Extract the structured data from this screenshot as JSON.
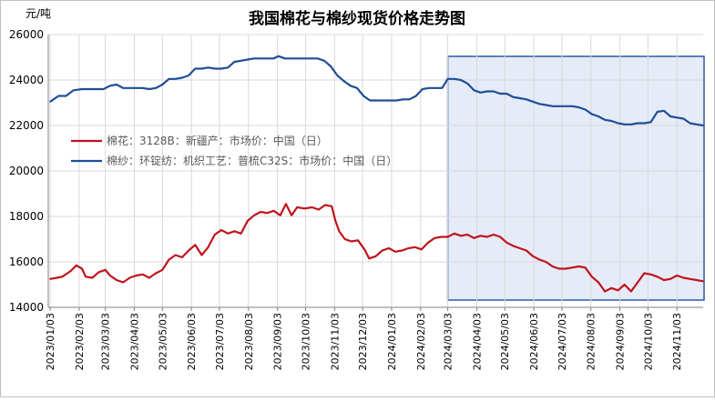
{
  "chart_data": {
    "type": "line",
    "title": "我国棉花与棉纱现货价格走势图",
    "ylabel": "元/吨",
    "xlabel": "",
    "ylim": [
      14000,
      26000
    ],
    "yticks": [
      14000,
      16000,
      18000,
      20000,
      22000,
      24000,
      26000
    ],
    "xlim": [
      "2023/01/01",
      "2024/12/01"
    ],
    "xtick_labels": [
      "2023/01/03",
      "2023/02/03",
      "2023/03/03",
      "2023/04/03",
      "2023/05/03",
      "2023/06/03",
      "2023/07/03",
      "2023/08/03",
      "2023/09/03",
      "2023/10/03",
      "2023/11/03",
      "2023/12/03",
      "2024/01/03",
      "2024/02/03",
      "2024/03/03",
      "2024/04/03",
      "2024/05/03",
      "2024/06/03",
      "2024/07/03",
      "2024/08/03",
      "2024/09/03",
      "2024/10/03",
      "2024/11/03"
    ],
    "grid": true,
    "legend_position": "center-left",
    "highlight_range": [
      "2024/03/03",
      "2024/12/01"
    ],
    "colors": {
      "cotton": "#c0141c",
      "yarn": "#1f4e96",
      "highlight_fill": "#e6ebf8",
      "highlight_border": "#2a5aa8",
      "grid": "#d9d9d9"
    },
    "series": [
      {
        "name": "棉花：3128B：新疆产：市场价：中国（日）",
        "key": "cotton",
        "points": [
          [
            "2023/01/03",
            15250
          ],
          [
            "2023/01/10",
            15300
          ],
          [
            "2023/01/16",
            15350
          ],
          [
            "2023/01/25",
            15600
          ],
          [
            "2023/01/31",
            15850
          ],
          [
            "2023/02/06",
            15700
          ],
          [
            "2023/02/10",
            15350
          ],
          [
            "2023/02/17",
            15300
          ],
          [
            "2023/02/24",
            15550
          ],
          [
            "2023/03/03",
            15650
          ],
          [
            "2023/03/08",
            15400
          ],
          [
            "2023/03/15",
            15200
          ],
          [
            "2023/03/22",
            15100
          ],
          [
            "2023/03/29",
            15300
          ],
          [
            "2023/04/05",
            15400
          ],
          [
            "2023/04/12",
            15450
          ],
          [
            "2023/04/19",
            15300
          ],
          [
            "2023/04/26",
            15500
          ],
          [
            "2023/05/03",
            15650
          ],
          [
            "2023/05/10",
            16100
          ],
          [
            "2023/05/17",
            16300
          ],
          [
            "2023/05/24",
            16200
          ],
          [
            "2023/05/31",
            16500
          ],
          [
            "2023/06/07",
            16750
          ],
          [
            "2023/06/14",
            16300
          ],
          [
            "2023/06/21",
            16650
          ],
          [
            "2023/06/28",
            17200
          ],
          [
            "2023/07/05",
            17400
          ],
          [
            "2023/07/12",
            17250
          ],
          [
            "2023/07/19",
            17350
          ],
          [
            "2023/07/26",
            17250
          ],
          [
            "2023/08/02",
            17800
          ],
          [
            "2023/08/09",
            18050
          ],
          [
            "2023/08/16",
            18200
          ],
          [
            "2023/08/23",
            18150
          ],
          [
            "2023/08/30",
            18250
          ],
          [
            "2023/09/06",
            18050
          ],
          [
            "2023/09/12",
            18550
          ],
          [
            "2023/09/18",
            18050
          ],
          [
            "2023/09/24",
            18400
          ],
          [
            "2023/10/02",
            18350
          ],
          [
            "2023/10/10",
            18400
          ],
          [
            "2023/10/17",
            18300
          ],
          [
            "2023/10/24",
            18500
          ],
          [
            "2023/10/31",
            18450
          ],
          [
            "2023/11/04",
            17800
          ],
          [
            "2023/11/08",
            17350
          ],
          [
            "2023/11/14",
            17000
          ],
          [
            "2023/11/21",
            16900
          ],
          [
            "2023/11/28",
            16950
          ],
          [
            "2023/12/05",
            16550
          ],
          [
            "2023/12/10",
            16150
          ],
          [
            "2023/12/17",
            16250
          ],
          [
            "2023/12/24",
            16500
          ],
          [
            "2023/12/31",
            16600
          ],
          [
            "2024/01/07",
            16450
          ],
          [
            "2024/01/14",
            16500
          ],
          [
            "2024/01/21",
            16600
          ],
          [
            "2024/01/28",
            16650
          ],
          [
            "2024/02/04",
            16550
          ],
          [
            "2024/02/11",
            16850
          ],
          [
            "2024/02/18",
            17050
          ],
          [
            "2024/02/25",
            17100
          ],
          [
            "2024/03/03",
            17100
          ],
          [
            "2024/03/10",
            17250
          ],
          [
            "2024/03/17",
            17150
          ],
          [
            "2024/03/24",
            17200
          ],
          [
            "2024/03/31",
            17050
          ],
          [
            "2024/04/07",
            17150
          ],
          [
            "2024/04/14",
            17100
          ],
          [
            "2024/04/21",
            17200
          ],
          [
            "2024/04/28",
            17100
          ],
          [
            "2024/05/05",
            16850
          ],
          [
            "2024/05/12",
            16700
          ],
          [
            "2024/05/19",
            16600
          ],
          [
            "2024/05/26",
            16500
          ],
          [
            "2024/06/02",
            16250
          ],
          [
            "2024/06/09",
            16100
          ],
          [
            "2024/06/16",
            16000
          ],
          [
            "2024/06/23",
            15800
          ],
          [
            "2024/06/30",
            15700
          ],
          [
            "2024/07/07",
            15700
          ],
          [
            "2024/07/14",
            15750
          ],
          [
            "2024/07/21",
            15800
          ],
          [
            "2024/07/28",
            15750
          ],
          [
            "2024/08/04",
            15350
          ],
          [
            "2024/08/11",
            15100
          ],
          [
            "2024/08/18",
            14700
          ],
          [
            "2024/08/25",
            14850
          ],
          [
            "2024/09/01",
            14750
          ],
          [
            "2024/09/08",
            15000
          ],
          [
            "2024/09/15",
            14700
          ],
          [
            "2024/09/22",
            15100
          ],
          [
            "2024/09/29",
            15500
          ],
          [
            "2024/10/06",
            15450
          ],
          [
            "2024/10/13",
            15350
          ],
          [
            "2024/10/20",
            15200
          ],
          [
            "2024/10/27",
            15250
          ],
          [
            "2024/11/03",
            15400
          ],
          [
            "2024/11/10",
            15300
          ],
          [
            "2024/11/17",
            15250
          ],
          [
            "2024/11/24",
            15200
          ],
          [
            "2024/12/01",
            15150
          ]
        ]
      },
      {
        "name": "棉纱：环锭纺：机织工艺：普梳C32S：市场价：中国（日）",
        "key": "yarn",
        "points": [
          [
            "2023/01/03",
            23050
          ],
          [
            "2023/01/12",
            23300
          ],
          [
            "2023/01/20",
            23300
          ],
          [
            "2023/01/28",
            23550
          ],
          [
            "2023/02/06",
            23600
          ],
          [
            "2023/02/14",
            23600
          ],
          [
            "2023/02/22",
            23600
          ],
          [
            "2023/03/01",
            23600
          ],
          [
            "2023/03/08",
            23750
          ],
          [
            "2023/03/15",
            23800
          ],
          [
            "2023/03/22",
            23650
          ],
          [
            "2023/03/29",
            23650
          ],
          [
            "2023/04/05",
            23650
          ],
          [
            "2023/04/12",
            23650
          ],
          [
            "2023/04/19",
            23600
          ],
          [
            "2023/04/26",
            23650
          ],
          [
            "2023/05/03",
            23800
          ],
          [
            "2023/05/10",
            24050
          ],
          [
            "2023/05/17",
            24050
          ],
          [
            "2023/05/24",
            24100
          ],
          [
            "2023/05/31",
            24200
          ],
          [
            "2023/06/07",
            24500
          ],
          [
            "2023/06/14",
            24500
          ],
          [
            "2023/06/21",
            24550
          ],
          [
            "2023/06/28",
            24500
          ],
          [
            "2023/07/05",
            24500
          ],
          [
            "2023/07/12",
            24550
          ],
          [
            "2023/07/19",
            24800
          ],
          [
            "2023/07/26",
            24850
          ],
          [
            "2023/08/02",
            24900
          ],
          [
            "2023/08/09",
            24950
          ],
          [
            "2023/08/16",
            24950
          ],
          [
            "2023/08/23",
            24950
          ],
          [
            "2023/08/30",
            24950
          ],
          [
            "2023/09/04",
            25050
          ],
          [
            "2023/09/11",
            24950
          ],
          [
            "2023/09/18",
            24950
          ],
          [
            "2023/09/25",
            24950
          ],
          [
            "2023/10/02",
            24950
          ],
          [
            "2023/10/09",
            24950
          ],
          [
            "2023/10/16",
            24950
          ],
          [
            "2023/10/23",
            24850
          ],
          [
            "2023/10/30",
            24600
          ],
          [
            "2023/11/06",
            24200
          ],
          [
            "2023/11/13",
            23950
          ],
          [
            "2023/11/20",
            23750
          ],
          [
            "2023/11/27",
            23650
          ],
          [
            "2023/12/04",
            23300
          ],
          [
            "2023/12/11",
            23100
          ],
          [
            "2023/12/18",
            23100
          ],
          [
            "2023/12/25",
            23100
          ],
          [
            "2024/01/01",
            23100
          ],
          [
            "2024/01/08",
            23100
          ],
          [
            "2024/01/15",
            23150
          ],
          [
            "2024/01/22",
            23150
          ],
          [
            "2024/01/29",
            23300
          ],
          [
            "2024/02/05",
            23600
          ],
          [
            "2024/02/12",
            23650
          ],
          [
            "2024/02/19",
            23650
          ],
          [
            "2024/02/26",
            23650
          ],
          [
            "2024/03/03",
            24050
          ],
          [
            "2024/03/10",
            24050
          ],
          [
            "2024/03/17",
            24000
          ],
          [
            "2024/03/24",
            23850
          ],
          [
            "2024/03/31",
            23550
          ],
          [
            "2024/04/07",
            23450
          ],
          [
            "2024/04/14",
            23500
          ],
          [
            "2024/04/21",
            23500
          ],
          [
            "2024/04/28",
            23400
          ],
          [
            "2024/05/05",
            23400
          ],
          [
            "2024/05/12",
            23250
          ],
          [
            "2024/05/19",
            23200
          ],
          [
            "2024/05/26",
            23150
          ],
          [
            "2024/06/02",
            23050
          ],
          [
            "2024/06/09",
            22950
          ],
          [
            "2024/06/16",
            22900
          ],
          [
            "2024/06/23",
            22850
          ],
          [
            "2024/06/30",
            22850
          ],
          [
            "2024/07/07",
            22850
          ],
          [
            "2024/07/14",
            22850
          ],
          [
            "2024/07/21",
            22800
          ],
          [
            "2024/07/28",
            22700
          ],
          [
            "2024/08/04",
            22500
          ],
          [
            "2024/08/11",
            22400
          ],
          [
            "2024/08/18",
            22250
          ],
          [
            "2024/08/25",
            22200
          ],
          [
            "2024/09/01",
            22100
          ],
          [
            "2024/09/08",
            22050
          ],
          [
            "2024/09/15",
            22050
          ],
          [
            "2024/09/22",
            22100
          ],
          [
            "2024/09/29",
            22100
          ],
          [
            "2024/10/06",
            22150
          ],
          [
            "2024/10/13",
            22600
          ],
          [
            "2024/10/20",
            22650
          ],
          [
            "2024/10/27",
            22400
          ],
          [
            "2024/11/03",
            22350
          ],
          [
            "2024/11/10",
            22300
          ],
          [
            "2024/11/17",
            22100
          ],
          [
            "2024/11/24",
            22050
          ],
          [
            "2024/12/01",
            22000
          ]
        ]
      }
    ]
  }
}
